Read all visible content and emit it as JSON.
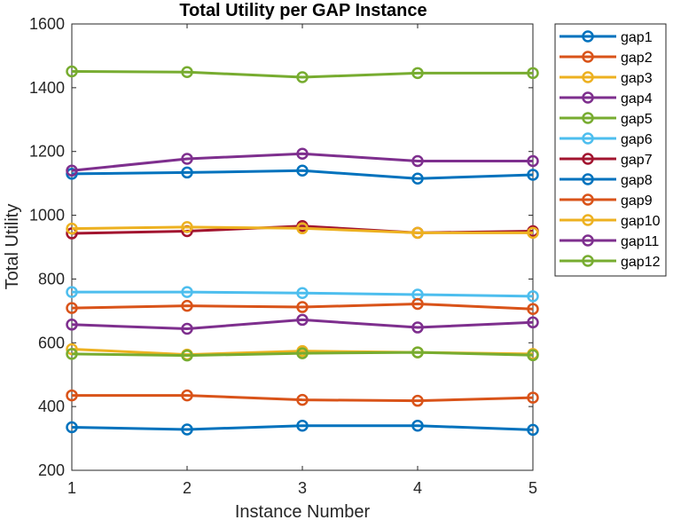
{
  "chart_data": {
    "type": "line",
    "title": "Total Utility per GAP Instance",
    "xlabel": "Instance Number",
    "ylabel": "Total Utility",
    "x": [
      1,
      2,
      3,
      4,
      5
    ],
    "xlim": [
      1,
      5
    ],
    "ylim": [
      200,
      1600
    ],
    "xticks": [
      "1",
      "2",
      "3",
      "4",
      "5"
    ],
    "yticks": [
      "200",
      "400",
      "600",
      "800",
      "1000",
      "1200",
      "1400",
      "1600"
    ],
    "grid": false,
    "legend_position": "outside-right",
    "marker": "circle",
    "series": [
      {
        "name": "gap1",
        "color": "#0072BD",
        "values": [
          335,
          328,
          340,
          340,
          327
        ]
      },
      {
        "name": "gap2",
        "color": "#D95319",
        "values": [
          435,
          435,
          421,
          418,
          428
        ]
      },
      {
        "name": "gap3",
        "color": "#EDB120",
        "values": [
          580,
          563,
          574,
          570,
          565
        ]
      },
      {
        "name": "gap4",
        "color": "#7E2F8E",
        "values": [
          657,
          644,
          672,
          648,
          664
        ]
      },
      {
        "name": "gap5",
        "color": "#77AC30",
        "values": [
          565,
          560,
          567,
          570,
          561
        ]
      },
      {
        "name": "gap6",
        "color": "#4DBEEE",
        "values": [
          759,
          759,
          756,
          751,
          746
        ]
      },
      {
        "name": "gap7",
        "color": "#A2142F",
        "values": [
          943,
          950,
          966,
          945,
          950
        ]
      },
      {
        "name": "gap8",
        "color": "#0072BD",
        "values": [
          1130,
          1134,
          1140,
          1115,
          1127
        ]
      },
      {
        "name": "gap9",
        "color": "#D95319",
        "values": [
          709,
          716,
          712,
          722,
          706
        ]
      },
      {
        "name": "gap10",
        "color": "#EDB120",
        "values": [
          958,
          963,
          959,
          945,
          945
        ]
      },
      {
        "name": "gap11",
        "color": "#7E2F8E",
        "values": [
          1140,
          1177,
          1193,
          1170,
          1170
        ]
      },
      {
        "name": "gap12",
        "color": "#77AC30",
        "values": [
          1451,
          1449,
          1433,
          1446,
          1446
        ]
      }
    ]
  }
}
